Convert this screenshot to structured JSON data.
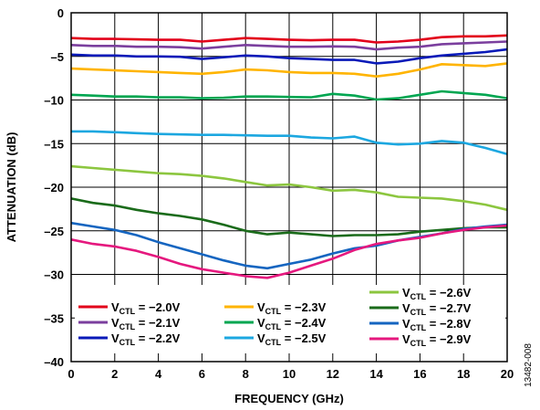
{
  "chart_data": {
    "type": "line",
    "title": "",
    "xlabel": "FREQUENCY (GHz)",
    "ylabel": "ATTENUATION (dB)",
    "xlim": [
      0,
      20
    ],
    "ylim": [
      -40,
      0
    ],
    "xticks": [
      0,
      2,
      4,
      6,
      8,
      10,
      12,
      14,
      16,
      18,
      20
    ],
    "yticks": [
      0,
      -5,
      -10,
      -15,
      -20,
      -25,
      -30,
      -35,
      -40
    ],
    "grid": true,
    "legend_position": "bottom-inside",
    "figure_id": "13482-008",
    "x": [
      0,
      1,
      2,
      3,
      4,
      5,
      6,
      7,
      8,
      9,
      10,
      11,
      12,
      13,
      14,
      15,
      16,
      17,
      18,
      19,
      20
    ],
    "series": [
      {
        "name": "V_CTL = −2.0V",
        "label_main": "V",
        "label_sub": "CTL",
        "label_rest": " = −2.0V",
        "color": "#e2001a",
        "values": [
          -2.9,
          -3.0,
          -3.0,
          -3.05,
          -3.1,
          -3.1,
          -3.3,
          -3.1,
          -2.9,
          -3.0,
          -3.1,
          -3.15,
          -3.1,
          -3.1,
          -3.4,
          -3.3,
          -3.1,
          -2.8,
          -2.7,
          -2.7,
          -2.6
        ]
      },
      {
        "name": "V_CTL = −2.1V",
        "label_main": "V",
        "label_sub": "CTL",
        "label_rest": " = −2.1V",
        "color": "#7b3f9e",
        "values": [
          -3.7,
          -3.8,
          -3.8,
          -3.9,
          -3.9,
          -3.95,
          -4.1,
          -3.9,
          -3.7,
          -3.8,
          -3.9,
          -3.9,
          -3.85,
          -3.9,
          -4.2,
          -4.0,
          -3.9,
          -3.6,
          -3.5,
          -3.4,
          -3.3
        ]
      },
      {
        "name": "V_CTL = −2.2V",
        "label_main": "V",
        "label_sub": "CTL",
        "label_rest": " = −2.2V",
        "color": "#0a1ab8",
        "values": [
          -4.8,
          -4.9,
          -4.9,
          -5.0,
          -5.0,
          -5.05,
          -5.3,
          -5.1,
          -4.9,
          -5.0,
          -5.2,
          -5.3,
          -5.4,
          -5.4,
          -5.8,
          -5.6,
          -5.2,
          -4.9,
          -4.7,
          -4.5,
          -4.2
        ]
      },
      {
        "name": "V_CTL = −2.3V",
        "label_main": "V",
        "label_sub": "CTL",
        "label_rest": " = −2.3V",
        "color": "#ffb400",
        "values": [
          -6.4,
          -6.5,
          -6.6,
          -6.7,
          -6.8,
          -6.9,
          -7.0,
          -6.8,
          -6.5,
          -6.6,
          -6.8,
          -6.9,
          -6.9,
          -7.0,
          -7.3,
          -7.0,
          -6.5,
          -5.9,
          -6.0,
          -6.1,
          -5.8
        ]
      },
      {
        "name": "V_CTL = −2.4V",
        "label_main": "V",
        "label_sub": "CTL",
        "label_rest": " = −2.4V",
        "color": "#00a651",
        "values": [
          -9.4,
          -9.5,
          -9.6,
          -9.6,
          -9.7,
          -9.7,
          -9.8,
          -9.75,
          -9.6,
          -9.6,
          -9.65,
          -9.7,
          -9.3,
          -9.5,
          -9.95,
          -9.8,
          -9.4,
          -9.0,
          -9.2,
          -9.4,
          -9.8
        ]
      },
      {
        "name": "V_CTL = −2.5V",
        "label_main": "V",
        "label_sub": "CTL",
        "label_rest": " = −2.5V",
        "color": "#1ca7e0",
        "values": [
          -13.6,
          -13.6,
          -13.7,
          -13.8,
          -13.9,
          -13.95,
          -14.0,
          -14.0,
          -14.05,
          -14.1,
          -14.1,
          -14.3,
          -14.4,
          -14.2,
          -14.9,
          -15.1,
          -15.0,
          -14.7,
          -14.9,
          -15.5,
          -16.2
        ]
      },
      {
        "name": "V_CTL = −2.6V",
        "label_main": "V",
        "label_sub": "CTL",
        "label_rest": " = −2.6V",
        "color": "#8cc63f",
        "values": [
          -17.6,
          -17.8,
          -18.0,
          -18.2,
          -18.4,
          -18.5,
          -18.7,
          -19.0,
          -19.4,
          -19.8,
          -19.7,
          -20.0,
          -20.4,
          -20.3,
          -20.6,
          -21.1,
          -21.2,
          -21.3,
          -21.6,
          -22.0,
          -22.6
        ]
      },
      {
        "name": "V_CTL = −2.7V",
        "label_main": "V",
        "label_sub": "CTL",
        "label_rest": " = −2.7V",
        "color": "#1a6b1a",
        "values": [
          -21.3,
          -21.8,
          -22.1,
          -22.6,
          -23.0,
          -23.3,
          -23.7,
          -24.3,
          -25.0,
          -25.4,
          -25.2,
          -25.4,
          -25.6,
          -25.5,
          -25.5,
          -25.4,
          -25.1,
          -24.9,
          -24.7,
          -24.6,
          -24.6
        ]
      },
      {
        "name": "V_CTL = −2.8V",
        "label_main": "V",
        "label_sub": "CTL",
        "label_rest": " = −2.8V",
        "color": "#1565c0",
        "values": [
          -24.1,
          -24.5,
          -24.9,
          -25.5,
          -26.3,
          -27.0,
          -27.7,
          -28.4,
          -29.0,
          -29.3,
          -28.8,
          -28.3,
          -27.6,
          -27.0,
          -26.7,
          -26.1,
          -25.7,
          -25.3,
          -24.8,
          -24.5,
          -24.3
        ]
      },
      {
        "name": "V_CTL = −2.9V",
        "label_main": "V",
        "label_sub": "CTL",
        "label_rest": " = −2.9V",
        "color": "#e5187e",
        "values": [
          -26.0,
          -26.5,
          -26.8,
          -27.3,
          -28.0,
          -28.8,
          -29.4,
          -29.8,
          -30.2,
          -30.4,
          -29.8,
          -29.0,
          -28.2,
          -27.2,
          -26.5,
          -26.1,
          -25.8,
          -25.3,
          -24.9,
          -24.6,
          -24.4
        ]
      }
    ]
  }
}
